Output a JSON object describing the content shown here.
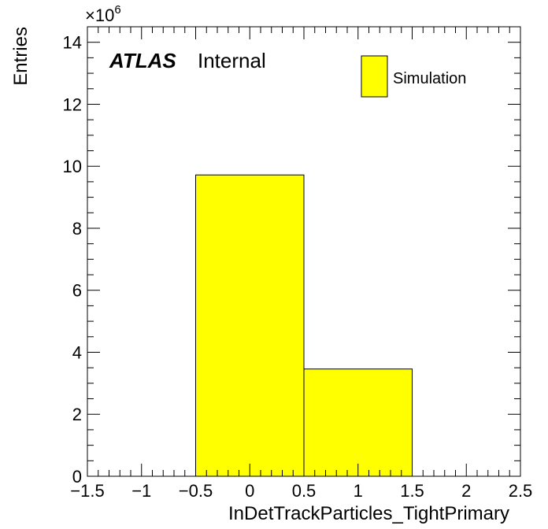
{
  "chart_data": {
    "type": "bar",
    "histogram": true,
    "bins": [
      {
        "x_low": -0.5,
        "x_high": 0.5,
        "value": 9.72
      },
      {
        "x_low": 0.5,
        "x_high": 1.5,
        "value": 3.46
      }
    ],
    "xlabel": "InDetTrackParticles_TightPrimary",
    "ylabel": "Entries",
    "xlim": [
      -1.5,
      2.5
    ],
    "ylim": [
      0,
      14.5
    ],
    "x_ticks": [
      "−1.5",
      "−1",
      "−0.5",
      "0",
      "0.5",
      "1",
      "1.5",
      "2",
      "2.5"
    ],
    "y_ticks": [
      "0",
      "2",
      "4",
      "6",
      "8",
      "10",
      "12",
      "14"
    ],
    "y_scale_prefix": "×10",
    "y_scale_exponent": "6",
    "legend": [
      {
        "label": "Simulation",
        "color": "#ffff00"
      }
    ],
    "legend_position": "top-right",
    "atlas_label": "ATLAS",
    "atlas_status": "Internal",
    "grid": false,
    "fill_color": "#ffff00",
    "edge_color": "#000000"
  }
}
